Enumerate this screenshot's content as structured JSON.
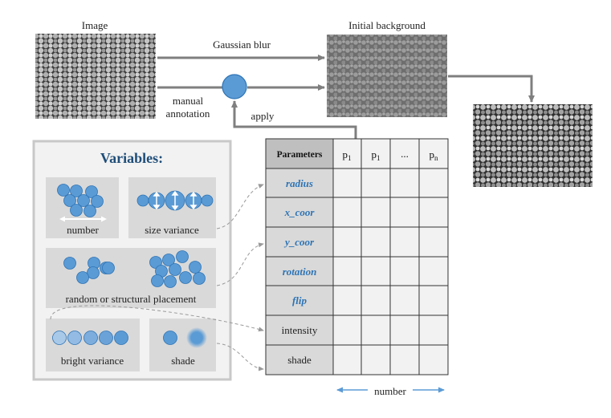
{
  "labels": {
    "image": "Image",
    "initial_background": "Initial background",
    "gaussian_blur": "Gaussian blur",
    "manual": "manual",
    "annotation": "annotation",
    "apply": "apply"
  },
  "variables": {
    "title": "Variables:",
    "number": "number",
    "size_variance": "size variance",
    "placement": "random or structural placement",
    "bright_variance": "bright variance",
    "shade": "shade"
  },
  "table": {
    "header": [
      "Parameters",
      "p",
      "p",
      "...",
      "p"
    ],
    "header_subscripts": [
      "",
      "1",
      "1",
      "",
      "n"
    ],
    "rows": [
      "radius",
      "x_coor",
      "y_coor",
      "rotation",
      "flip",
      "intensity",
      "shade"
    ],
    "number_label": "number"
  },
  "colors": {
    "blue": "#5b9bd5",
    "blue_dark": "#2e74b5",
    "panel_gray": "#d9d9d9",
    "table_gray": "#bfbfbf",
    "arrow_gray": "#808080"
  }
}
